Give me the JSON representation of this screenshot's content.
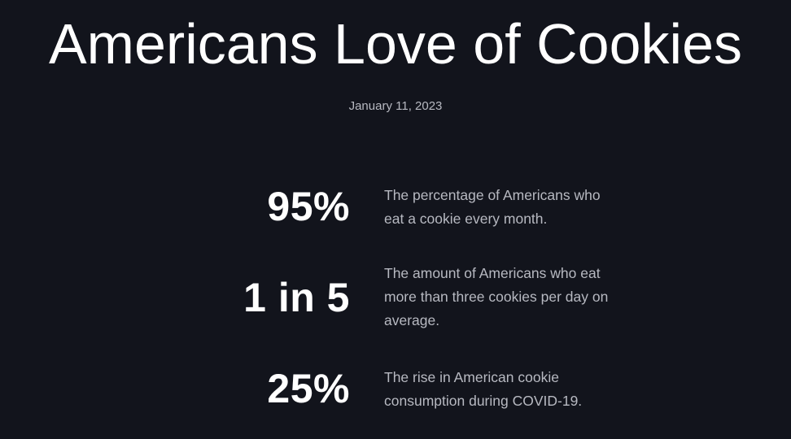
{
  "header": {
    "title": "Americans Love of Cookies",
    "date": "January 11, 2023"
  },
  "stats": [
    {
      "value": "95%",
      "description": "The percentage of Americans who eat a cookie every month."
    },
    {
      "value": "1 in 5",
      "description": "The amount of Americans who eat more than three cookies per day on average."
    },
    {
      "value": "25%",
      "description": "The rise in American cookie consumption during COVID-19."
    }
  ],
  "colors": {
    "background": "#12141c",
    "heading": "#ffffff",
    "muted_text": "#b7b9c1"
  }
}
